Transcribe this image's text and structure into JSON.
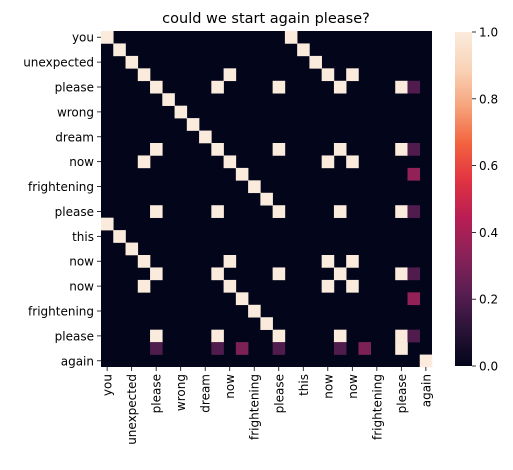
{
  "chart_data": {
    "type": "heatmap",
    "title": "could we start again please?",
    "row_labels": [
      "you",
      "unexpected",
      "please",
      "wrong",
      "dream",
      "now",
      "frightening",
      "please",
      "this",
      "now",
      "now",
      "frightening",
      "please",
      "again"
    ],
    "col_labels": [
      "you",
      "unexpected",
      "please",
      "wrong",
      "dream",
      "now",
      "frightening",
      "please",
      "this",
      "now",
      "now",
      "frightening",
      "please",
      "again"
    ],
    "grid_rows": 27,
    "grid_cols": 27,
    "row_label_positions": [
      0,
      2,
      4,
      6,
      8,
      10,
      12,
      14,
      16,
      18,
      20,
      22,
      24,
      26
    ],
    "col_label_positions": [
      0,
      2,
      4,
      6,
      8,
      10,
      12,
      14,
      16,
      18,
      20,
      22,
      24,
      26
    ],
    "bright_cells": [
      [
        0,
        0
      ],
      [
        0,
        15
      ],
      [
        1,
        1
      ],
      [
        1,
        16
      ],
      [
        2,
        2
      ],
      [
        2,
        17
      ],
      [
        3,
        3
      ],
      [
        3,
        10
      ],
      [
        3,
        18
      ],
      [
        3,
        20
      ],
      [
        4,
        4
      ],
      [
        4,
        9
      ],
      [
        4,
        14
      ],
      [
        4,
        19
      ],
      [
        4,
        24
      ],
      [
        5,
        5
      ],
      [
        6,
        6
      ],
      [
        7,
        7
      ],
      [
        8,
        8
      ],
      [
        9,
        4
      ],
      [
        9,
        9
      ],
      [
        9,
        14
      ],
      [
        9,
        19
      ],
      [
        9,
        24
      ],
      [
        10,
        3
      ],
      [
        10,
        10
      ],
      [
        10,
        18
      ],
      [
        10,
        20
      ],
      [
        11,
        11
      ],
      [
        12,
        12
      ],
      [
        13,
        13
      ],
      [
        14,
        4
      ],
      [
        14,
        9
      ],
      [
        14,
        14
      ],
      [
        14,
        19
      ],
      [
        14,
        24
      ],
      [
        15,
        0
      ],
      [
        16,
        1
      ],
      [
        17,
        2
      ],
      [
        18,
        3
      ],
      [
        18,
        10
      ],
      [
        18,
        18
      ],
      [
        18,
        20
      ],
      [
        19,
        4
      ],
      [
        19,
        9
      ],
      [
        19,
        14
      ],
      [
        19,
        19
      ],
      [
        19,
        24
      ],
      [
        20,
        3
      ],
      [
        20,
        10
      ],
      [
        20,
        18
      ],
      [
        20,
        20
      ],
      [
        21,
        11
      ],
      [
        22,
        12
      ],
      [
        23,
        13
      ],
      [
        24,
        4
      ],
      [
        24,
        9
      ],
      [
        24,
        14
      ],
      [
        24,
        19
      ],
      [
        24,
        24
      ],
      [
        25,
        24
      ],
      [
        26,
        26
      ]
    ],
    "partial_cells": [
      {
        "row": 4,
        "col": 25,
        "value": 0.2
      },
      {
        "row": 9,
        "col": 25,
        "value": 0.2
      },
      {
        "row": 11,
        "col": 25,
        "value": 0.35
      },
      {
        "row": 14,
        "col": 25,
        "value": 0.2
      },
      {
        "row": 19,
        "col": 25,
        "value": 0.2
      },
      {
        "row": 21,
        "col": 25,
        "value": 0.35
      },
      {
        "row": 24,
        "col": 25,
        "value": 0.2
      },
      {
        "row": 25,
        "col": 4,
        "value": 0.2
      },
      {
        "row": 25,
        "col": 9,
        "value": 0.2
      },
      {
        "row": 25,
        "col": 11,
        "value": 0.3
      },
      {
        "row": 25,
        "col": 14,
        "value": 0.2
      },
      {
        "row": 25,
        "col": 19,
        "value": 0.2
      },
      {
        "row": 25,
        "col": 21,
        "value": 0.3
      }
    ],
    "colorbar": {
      "min": 0.0,
      "max": 1.0,
      "ticks": [
        "0.0",
        "0.2",
        "0.4",
        "0.6",
        "0.8",
        "1.0"
      ],
      "colormap": "rocket",
      "stops": [
        "#03051a",
        "#2a1337",
        "#5a1e52",
        "#8a2258",
        "#b91e53",
        "#e13342",
        "#f3633f",
        "#f6a47c",
        "#f9d3b7",
        "#faebdd"
      ]
    }
  }
}
